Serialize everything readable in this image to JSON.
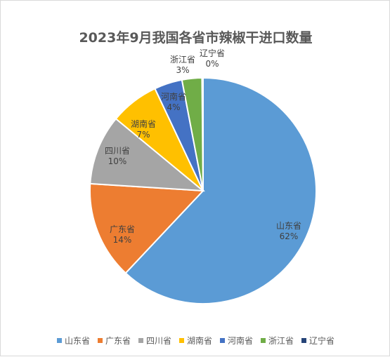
{
  "chart_data": {
    "type": "pie",
    "title": "2023年9月我国各省市辣椒干进口数量",
    "categories": [
      "山东省",
      "广东省",
      "四川省",
      "湖南省",
      "河南省",
      "浙江省",
      "辽宁省"
    ],
    "values": [
      62,
      14,
      10,
      7,
      4,
      3,
      0
    ],
    "value_labels": [
      "62%",
      "14%",
      "10%",
      "7%",
      "4%",
      "3%",
      "0%"
    ],
    "colors": [
      "#5b9bd5",
      "#ed7d31",
      "#a5a5a5",
      "#ffc000",
      "#4472c4",
      "#70ad47",
      "#264478"
    ],
    "legend_position": "bottom"
  }
}
